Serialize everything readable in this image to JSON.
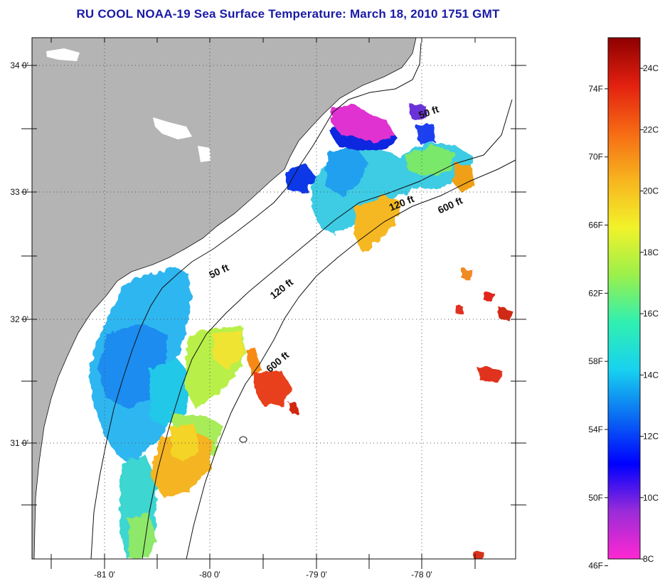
{
  "title": "RU COOL  NOAA-19  Sea Surface Temperature:  March 18, 2010 1751 GMT",
  "map": {
    "lat_labels": [
      "34 0'",
      "33 0'",
      "32 0'",
      "31 0'"
    ],
    "lon_labels": [
      "-81 0'",
      "-80 0'",
      "-79 0'",
      "-78 0'"
    ],
    "isobath_labels": [
      "50 ft",
      "50 ft",
      "120 ft",
      "120 ft",
      "600 ft",
      "600 ft"
    ],
    "land_color": "#b4b4b4",
    "contour_color": "#111111"
  },
  "colorbar": {
    "fahrenheit_labels": [
      "74F",
      "70F",
      "66F",
      "62F",
      "58F",
      "54F",
      "50F",
      "46F"
    ],
    "celsius_labels": [
      "24C",
      "22C",
      "20C",
      "18C",
      "16C",
      "14C",
      "12C",
      "10C",
      "8C"
    ],
    "range_c": [
      8,
      25
    ],
    "gradient": [
      "#ff28d2",
      "#9a2cd8",
      "#0000ff",
      "#0a6cf2",
      "#18d2f0",
      "#30f0b0",
      "#9cf04a",
      "#f2f22a",
      "#f7b41e",
      "#f66a14",
      "#e22010",
      "#8e0000"
    ]
  }
}
